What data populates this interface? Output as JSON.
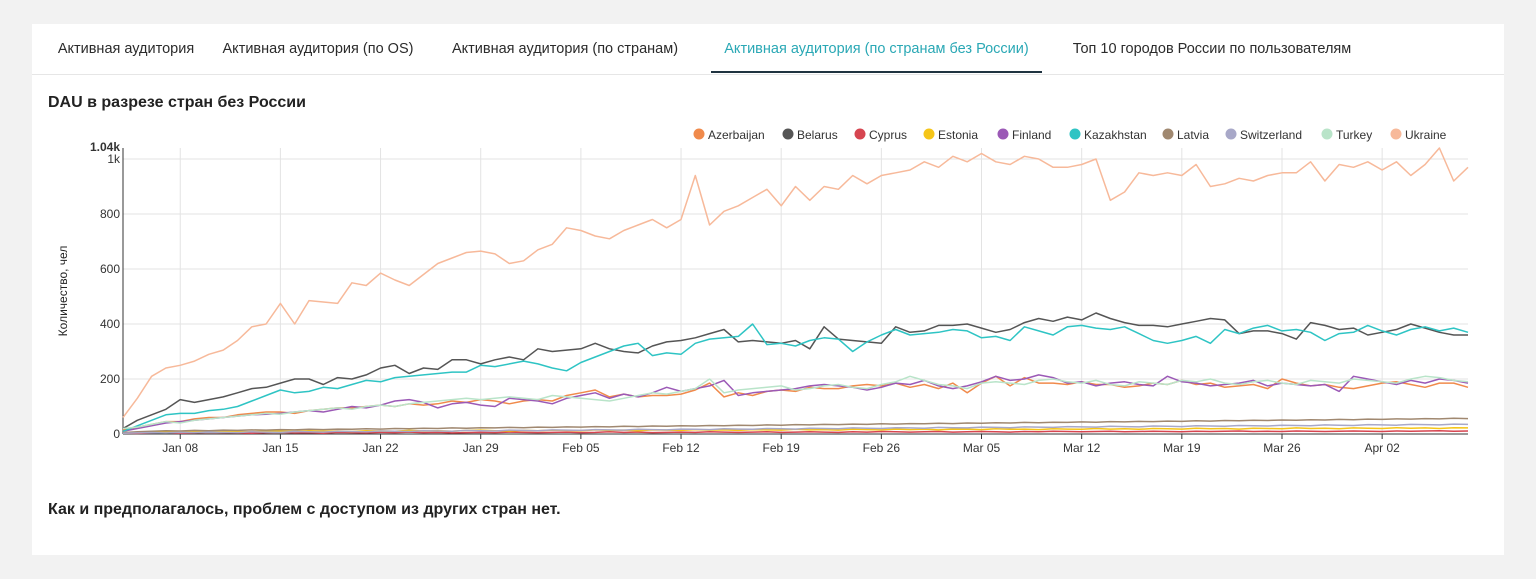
{
  "tabs": [
    {
      "label": "Активная аудитория",
      "active": false
    },
    {
      "label": "Активная аудитория (по OS)",
      "active": false
    },
    {
      "label": "Активная аудитория (по странам)",
      "active": false
    },
    {
      "label": "Активная аудитория (по странам без России)",
      "active": true
    },
    {
      "label": "Топ 10 городов России по пользователям",
      "active": false
    }
  ],
  "note": "Как и предполагалось, проблем с доступом из других стран нет.",
  "colors": {
    "accent": "#2aa8b5",
    "tab_underline": "#1f3340"
  },
  "chart_data": {
    "type": "line",
    "title": "DAU в разрезе стран без России",
    "ylabel": "Количество, чел",
    "xlabel": "",
    "ylim": [
      0,
      1040
    ],
    "y_ticks": [
      0,
      200,
      400,
      600,
      800,
      1000
    ],
    "y_tick_labels": [
      "0",
      "200",
      "400",
      "600",
      "800",
      "1k"
    ],
    "y_max_label": "1.04k",
    "x_tick_labels": [
      "Jan 08",
      "Jan 15",
      "Jan 22",
      "Jan 29",
      "Feb 05",
      "Feb 12",
      "Feb 19",
      "Feb 26",
      "Mar 05",
      "Mar 12",
      "Mar 19",
      "Mar 26",
      "Apr 02"
    ],
    "x_tick_day_index": [
      4,
      11,
      18,
      25,
      32,
      39,
      46,
      53,
      60,
      67,
      74,
      81,
      88
    ],
    "x_start": "Jan 04",
    "x_end": "Apr 07",
    "grid": true,
    "legend_position": "top-right",
    "series": [
      {
        "name": "Azerbaijan",
        "color": "#f08a4b",
        "values": [
          15,
          25,
          35,
          45,
          45,
          55,
          60,
          60,
          70,
          75,
          80,
          80,
          75,
          85,
          90,
          95,
          95,
          100,
          105,
          100,
          110,
          105,
          110,
          120,
          115,
          125,
          120,
          110,
          120,
          125,
          120,
          140,
          150,
          160,
          135,
          145,
          135,
          140,
          140,
          145,
          160,
          185,
          135,
          150,
          140,
          155,
          160,
          155,
          170,
          165,
          165,
          175,
          180,
          175,
          185,
          170,
          180,
          165,
          185,
          150,
          185,
          210,
          175,
          205,
          185,
          185,
          180,
          190,
          180,
          180,
          170,
          175,
          185,
          180,
          195,
          180,
          185,
          170,
          175,
          180,
          165,
          200,
          185,
          175,
          180,
          170,
          165,
          175,
          185,
          190,
          180,
          170,
          185,
          185,
          170
        ]
      },
      {
        "name": "Belarus",
        "color": "#555555",
        "values": [
          20,
          50,
          70,
          90,
          125,
          115,
          125,
          135,
          150,
          165,
          170,
          185,
          200,
          200,
          180,
          205,
          200,
          215,
          240,
          250,
          220,
          240,
          235,
          270,
          270,
          255,
          270,
          280,
          270,
          310,
          300,
          305,
          310,
          330,
          310,
          300,
          295,
          320,
          335,
          340,
          350,
          365,
          380,
          335,
          340,
          335,
          330,
          340,
          310,
          390,
          345,
          340,
          335,
          330,
          390,
          370,
          375,
          395,
          395,
          400,
          385,
          370,
          380,
          405,
          420,
          410,
          425,
          415,
          440,
          420,
          405,
          395,
          395,
          390,
          400,
          410,
          420,
          415,
          365,
          375,
          375,
          365,
          345,
          405,
          395,
          380,
          385,
          360,
          370,
          380,
          400,
          385,
          370,
          360,
          360
        ]
      },
      {
        "name": "Cyprus",
        "color": "#d64550",
        "values": [
          3,
          2,
          4,
          5,
          3,
          4,
          6,
          5,
          4,
          3,
          5,
          6,
          4,
          5,
          3,
          6,
          5,
          4,
          6,
          5,
          7,
          5,
          6,
          4,
          5,
          6,
          5,
          7,
          6,
          5,
          6,
          7,
          5,
          6,
          8,
          6,
          7,
          5,
          6,
          7,
          6,
          8,
          7,
          6,
          7,
          8,
          6,
          7,
          8,
          7,
          6,
          8,
          7,
          9,
          8,
          7,
          8,
          9,
          7,
          8,
          9,
          8,
          7,
          9,
          8,
          10,
          9,
          8,
          9,
          10,
          8,
          9,
          10,
          9,
          8,
          10,
          9,
          10,
          11,
          9,
          10,
          9,
          11,
          10,
          9,
          10,
          11,
          10,
          9,
          11,
          10,
          11,
          12,
          10,
          11
        ]
      },
      {
        "name": "Estonia",
        "color": "#f5c518",
        "values": [
          5,
          6,
          7,
          8,
          7,
          9,
          8,
          10,
          9,
          8,
          11,
          10,
          9,
          12,
          10,
          11,
          9,
          12,
          11,
          10,
          13,
          11,
          12,
          10,
          13,
          14,
          12,
          11,
          13,
          12,
          14,
          13,
          12,
          15,
          13,
          14,
          12,
          15,
          14,
          13,
          16,
          14,
          15,
          13,
          16,
          15,
          14,
          17,
          15,
          16,
          14,
          17,
          16,
          15,
          18,
          16,
          17,
          15,
          18,
          17,
          16,
          19,
          17,
          18,
          16,
          19,
          18,
          17,
          20,
          18,
          19,
          17,
          20,
          19,
          18,
          21,
          19,
          20,
          18,
          21,
          20,
          19,
          22,
          20,
          21,
          19,
          22,
          21,
          20,
          23,
          21,
          22,
          20,
          23,
          22
        ]
      },
      {
        "name": "Finland",
        "color": "#9b59b6",
        "values": [
          10,
          20,
          30,
          40,
          45,
          50,
          55,
          60,
          65,
          70,
          72,
          75,
          80,
          85,
          80,
          90,
          100,
          95,
          105,
          120,
          125,
          115,
          95,
          110,
          115,
          105,
          100,
          130,
          125,
          120,
          110,
          130,
          140,
          150,
          130,
          145,
          135,
          150,
          170,
          155,
          165,
          175,
          195,
          140,
          150,
          155,
          160,
          165,
          175,
          180,
          175,
          170,
          160,
          170,
          185,
          180,
          195,
          175,
          165,
          175,
          190,
          210,
          195,
          200,
          215,
          205,
          185,
          190,
          175,
          185,
          190,
          180,
          175,
          210,
          190,
          185,
          175,
          180,
          185,
          195,
          175,
          185,
          180,
          175,
          180,
          155,
          210,
          200,
          190,
          180,
          195,
          185,
          200,
          195,
          185
        ]
      },
      {
        "name": "Kazakhstan",
        "color": "#2ec4c4",
        "values": [
          10,
          30,
          50,
          70,
          75,
          75,
          85,
          90,
          100,
          120,
          140,
          160,
          150,
          155,
          170,
          165,
          180,
          195,
          190,
          205,
          210,
          215,
          220,
          225,
          225,
          250,
          245,
          255,
          265,
          255,
          240,
          230,
          260,
          280,
          300,
          320,
          330,
          285,
          295,
          290,
          330,
          345,
          350,
          355,
          400,
          325,
          330,
          320,
          340,
          350,
          345,
          300,
          335,
          360,
          380,
          360,
          365,
          370,
          380,
          375,
          350,
          355,
          340,
          390,
          375,
          360,
          390,
          395,
          385,
          380,
          390,
          365,
          340,
          330,
          340,
          355,
          330,
          380,
          365,
          385,
          395,
          375,
          380,
          370,
          340,
          365,
          370,
          395,
          375,
          360,
          380,
          390,
          375,
          385,
          370
        ]
      },
      {
        "name": "Latvia",
        "color": "#a08870",
        "values": [
          5,
          8,
          10,
          12,
          11,
          13,
          12,
          14,
          13,
          15,
          14,
          16,
          15,
          17,
          16,
          18,
          17,
          19,
          18,
          20,
          19,
          21,
          20,
          22,
          21,
          23,
          22,
          24,
          23,
          25,
          24,
          26,
          25,
          27,
          26,
          28,
          27,
          29,
          28,
          30,
          29,
          31,
          30,
          32,
          31,
          33,
          32,
          34,
          33,
          35,
          34,
          36,
          35,
          37,
          36,
          38,
          37,
          39,
          38,
          40,
          39,
          41,
          40,
          42,
          41,
          43,
          42,
          44,
          43,
          45,
          44,
          46,
          45,
          47,
          46,
          48,
          47,
          49,
          48,
          50,
          49,
          51,
          50,
          52,
          51,
          53,
          52,
          54,
          53,
          55,
          54,
          56,
          55,
          57,
          56
        ]
      },
      {
        "name": "Switzerland",
        "color": "#a8a8c8",
        "values": [
          3,
          4,
          5,
          4,
          6,
          5,
          7,
          6,
          5,
          8,
          7,
          6,
          9,
          8,
          7,
          10,
          9,
          8,
          11,
          10,
          9,
          12,
          11,
          10,
          13,
          12,
          11,
          14,
          13,
          12,
          15,
          14,
          13,
          16,
          15,
          14,
          17,
          16,
          15,
          18,
          17,
          16,
          19,
          18,
          17,
          20,
          19,
          18,
          21,
          20,
          19,
          22,
          21,
          20,
          23,
          22,
          21,
          24,
          23,
          22,
          25,
          24,
          23,
          26,
          25,
          24,
          27,
          26,
          25,
          28,
          27,
          26,
          29,
          28,
          27,
          30,
          29,
          28,
          31,
          30,
          29,
          32,
          31,
          30,
          33,
          32,
          31,
          34,
          33,
          32,
          35,
          34,
          33,
          36,
          35
        ]
      },
      {
        "name": "Turkey",
        "color": "#b9e4c9",
        "values": [
          20,
          25,
          35,
          45,
          40,
          50,
          55,
          60,
          65,
          70,
          75,
          72,
          80,
          85,
          90,
          95,
          90,
          100,
          105,
          100,
          110,
          115,
          120,
          125,
          130,
          125,
          130,
          135,
          130,
          125,
          140,
          135,
          130,
          125,
          120,
          130,
          140,
          150,
          145,
          155,
          165,
          200,
          150,
          160,
          165,
          170,
          175,
          160,
          165,
          175,
          180,
          170,
          165,
          180,
          190,
          210,
          195,
          180,
          175,
          165,
          185,
          190,
          185,
          180,
          195,
          200,
          190,
          185,
          195,
          180,
          175,
          190,
          185,
          180,
          195,
          190,
          200,
          185,
          180,
          190,
          195,
          185,
          180,
          195,
          190,
          185,
          200,
          195,
          190,
          185,
          200,
          210,
          205,
          195,
          190
        ]
      },
      {
        "name": "Ukraine",
        "color": "#f7b99a",
        "values": [
          60,
          130,
          210,
          240,
          250,
          265,
          290,
          305,
          340,
          390,
          400,
          475,
          400,
          485,
          480,
          475,
          550,
          540,
          585,
          560,
          540,
          580,
          620,
          640,
          660,
          665,
          655,
          620,
          630,
          670,
          690,
          750,
          740,
          720,
          710,
          740,
          760,
          780,
          750,
          780,
          940,
          760,
          810,
          830,
          860,
          890,
          830,
          900,
          850,
          900,
          890,
          940,
          910,
          940,
          950,
          960,
          990,
          970,
          1010,
          990,
          1020,
          990,
          980,
          1010,
          1000,
          970,
          970,
          980,
          1000,
          850,
          880,
          950,
          940,
          950,
          940,
          980,
          900,
          910,
          930,
          920,
          940,
          950,
          950,
          990,
          920,
          980,
          970,
          990,
          960,
          990,
          940,
          980,
          1040,
          920,
          970
        ]
      }
    ]
  }
}
